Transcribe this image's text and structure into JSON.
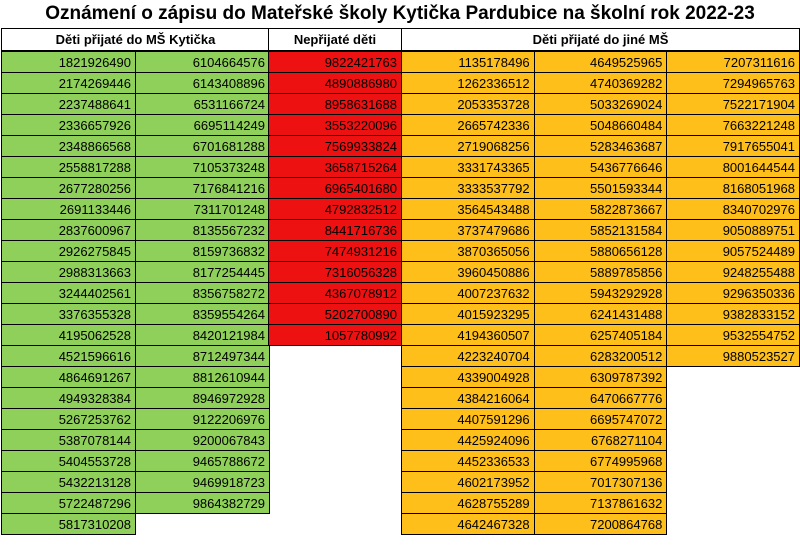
{
  "title": "Oznámení o zápisu do Mateřské školy Kytička Pardubice na školní rok 2022-23",
  "accepted": {
    "header": "Děti přijaté do MŠ Kytička",
    "colors": {
      "fill": "#8ed059"
    },
    "columns": [
      [
        "1821926490",
        "2174269446",
        "2237488641",
        "2336657926",
        "2348866568",
        "2558817288",
        "2677280256",
        "2691133446",
        "2837600967",
        "2926275845",
        "2988313663",
        "3244402561",
        "3376355328",
        "4195062528",
        "4521596616",
        "4864691267",
        "4949328384",
        "5267253762",
        "5387078144",
        "5404553728",
        "5432213128",
        "5722487296",
        "5817310208"
      ],
      [
        "6104664576",
        "6143408896",
        "6531166724",
        "6695114249",
        "6701681288",
        "7105373248",
        "7176841216",
        "7311701248",
        "8135567232",
        "8159736832",
        "8177254445",
        "8356758272",
        "8359554264",
        "8420121984",
        "8712497344",
        "8812610944",
        "8946972928",
        "9122206976",
        "9200067843",
        "9465788672",
        "9469918723",
        "9864382729",
        ""
      ]
    ]
  },
  "rejected": {
    "header": "Nepřijaté děti",
    "colors": {
      "fill": "#ee1111"
    },
    "columns": [
      [
        "9822421763",
        "4890886980",
        "8958631688",
        "3553220096",
        "7569933824",
        "3658715264",
        "6965401680",
        "4792832512",
        "8441716736",
        "7474931216",
        "7316056328",
        "4367078912",
        "5202700890",
        "1057780992"
      ]
    ]
  },
  "other": {
    "header": "Děti přijaté do jiné MŠ",
    "colors": {
      "fill": "#ffbf1a"
    },
    "columns": [
      [
        "1135178496",
        "1262336512",
        "2053353728",
        "2665742336",
        "2719068256",
        "3331743365",
        "3333537792",
        "3564543488",
        "3737479686",
        "3870365056",
        "3960450886",
        "4007237632",
        "4015923295",
        "4194360507",
        "4223240704",
        "4339004928",
        "4384216064",
        "4407591296",
        "4425924096",
        "4452336533",
        "4602173952",
        "4628755289",
        "4642467328"
      ],
      [
        "4649525965",
        "4740369282",
        "5033269024",
        "5048660484",
        "5283463687",
        "5436776646",
        "5501593344",
        "5822873667",
        "5852131584",
        "5880656128",
        "5889785856",
        "5943292928",
        "6241431488",
        "6257405184",
        "6283200512",
        "6309787392",
        "6470667776",
        "6695747072",
        "6768271104",
        "6774995968",
        "7017307136",
        "7137861632",
        "7200864768"
      ],
      [
        "7207311616",
        "7294965763",
        "7522171904",
        "7663221248",
        "7917655041",
        "8001644544",
        "8168051968",
        "8340702976",
        "9050889751",
        "9057524489",
        "9248255488",
        "9296350336",
        "9382833152",
        "9532554752",
        "9880523527",
        "",
        "",
        "",
        "",
        "",
        "",
        "",
        ""
      ]
    ]
  }
}
